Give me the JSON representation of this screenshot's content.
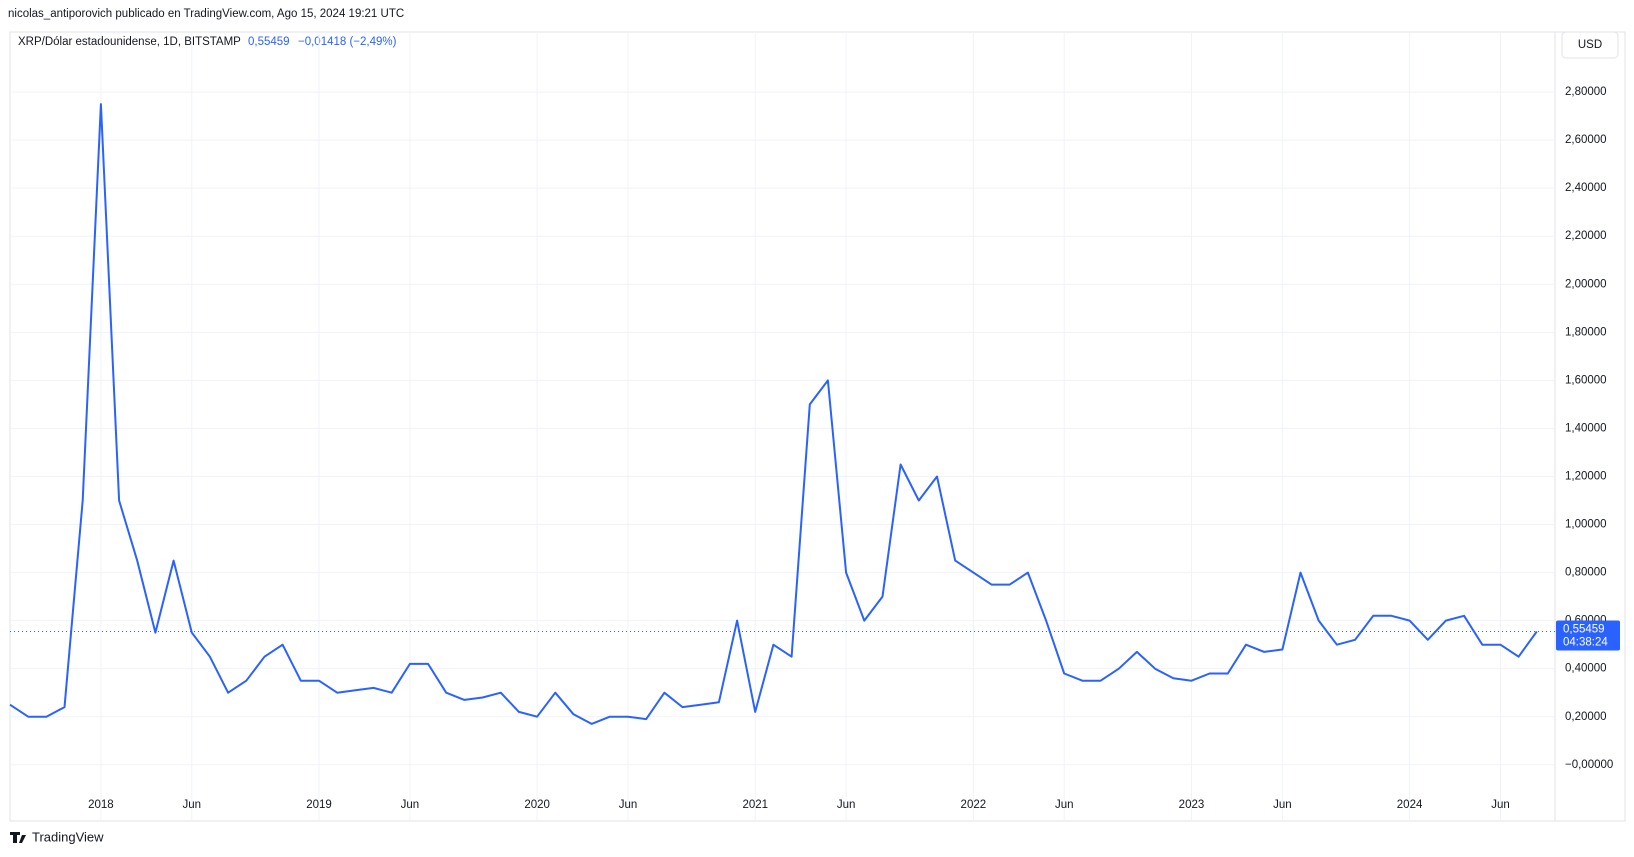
{
  "header": {
    "publisher": "nicolas_antiporovich publicado en TradingView.com, Ago 15, 2024 19:21 UTC",
    "logo": "TradingView"
  },
  "chart_data": {
    "type": "line",
    "title": "XRP/Dólar estadounidense, 1D, BITSTAMP",
    "currency": "USD",
    "last": {
      "value": 0.55459,
      "label": "0,55459"
    },
    "change": "−0,01418 (−2,49%)",
    "countdown": "04:38:24",
    "x": [
      "2017-08",
      "2017-09",
      "2017-10",
      "2017-11",
      "2017-12",
      "2018-01",
      "2018-02",
      "2018-03",
      "2018-04",
      "2018-05",
      "2018-06",
      "2018-07",
      "2018-08",
      "2018-09",
      "2018-10",
      "2018-11",
      "2018-12",
      "2019-01",
      "2019-02",
      "2019-03",
      "2019-04",
      "2019-05",
      "2019-06",
      "2019-07",
      "2019-08",
      "2019-09",
      "2019-10",
      "2019-11",
      "2019-12",
      "2020-01",
      "2020-02",
      "2020-03",
      "2020-04",
      "2020-05",
      "2020-06",
      "2020-07",
      "2020-08",
      "2020-09",
      "2020-10",
      "2020-11",
      "2020-12",
      "2021-01",
      "2021-02",
      "2021-03",
      "2021-04",
      "2021-05",
      "2021-06",
      "2021-07",
      "2021-08",
      "2021-09",
      "2021-10",
      "2021-11",
      "2021-12",
      "2022-01",
      "2022-02",
      "2022-03",
      "2022-04",
      "2022-05",
      "2022-06",
      "2022-07",
      "2022-08",
      "2022-09",
      "2022-10",
      "2022-11",
      "2022-12",
      "2023-01",
      "2023-02",
      "2023-03",
      "2023-04",
      "2023-05",
      "2023-06",
      "2023-07",
      "2023-08",
      "2023-09",
      "2023-10",
      "2023-11",
      "2023-12",
      "2024-01",
      "2024-02",
      "2024-03",
      "2024-04",
      "2024-05",
      "2024-06",
      "2024-07",
      "2024-08"
    ],
    "series": [
      {
        "name": "XRP/Dólar estadounidense",
        "color": "#2962ff",
        "values": [
          0.25,
          0.2,
          0.2,
          0.24,
          1.1,
          2.75,
          1.1,
          0.85,
          0.55,
          0.85,
          0.55,
          0.45,
          0.3,
          0.35,
          0.45,
          0.5,
          0.35,
          0.35,
          0.3,
          0.31,
          0.32,
          0.3,
          0.42,
          0.42,
          0.3,
          0.27,
          0.28,
          0.3,
          0.22,
          0.2,
          0.3,
          0.21,
          0.17,
          0.2,
          0.2,
          0.19,
          0.3,
          0.24,
          0.25,
          0.26,
          0.6,
          0.22,
          0.5,
          0.45,
          1.5,
          1.6,
          0.8,
          0.6,
          0.7,
          1.25,
          1.1,
          1.2,
          0.85,
          0.8,
          0.75,
          0.75,
          0.8,
          0.6,
          0.38,
          0.35,
          0.35,
          0.4,
          0.47,
          0.4,
          0.36,
          0.35,
          0.38,
          0.38,
          0.5,
          0.47,
          0.48,
          0.8,
          0.6,
          0.5,
          0.52,
          0.62,
          0.62,
          0.6,
          0.52,
          0.6,
          0.62,
          0.5,
          0.5,
          0.45,
          0.55459
        ]
      }
    ],
    "xlim": [
      "2017-08",
      "2024-09"
    ],
    "xticks": [
      {
        "value": "2018-01",
        "label": "2018"
      },
      {
        "value": "2018-06",
        "label": "Jun"
      },
      {
        "value": "2019-01",
        "label": "2019"
      },
      {
        "value": "2019-06",
        "label": "Jun"
      },
      {
        "value": "2020-01",
        "label": "2020"
      },
      {
        "value": "2020-06",
        "label": "Jun"
      },
      {
        "value": "2021-01",
        "label": "2021"
      },
      {
        "value": "2021-06",
        "label": "Jun"
      },
      {
        "value": "2022-01",
        "label": "2022"
      },
      {
        "value": "2022-06",
        "label": "Jun"
      },
      {
        "value": "2023-01",
        "label": "2023"
      },
      {
        "value": "2023-06",
        "label": "Jun"
      },
      {
        "value": "2024-01",
        "label": "2024"
      },
      {
        "value": "2024-06",
        "label": "Jun"
      }
    ],
    "ylim": [
      -0.234,
      3.05
    ],
    "yticks": [
      {
        "value": 0,
        "label": "−0,00000"
      },
      {
        "value": 0.2,
        "label": "0,20000"
      },
      {
        "value": 0.4,
        "label": "0,40000"
      },
      {
        "value": 0.6,
        "label": "0,60000"
      },
      {
        "value": 0.8,
        "label": "0,80000"
      },
      {
        "value": 1.0,
        "label": "1,00000"
      },
      {
        "value": 1.2,
        "label": "1,20000"
      },
      {
        "value": 1.4,
        "label": "1,40000"
      },
      {
        "value": 1.6,
        "label": "1,60000"
      },
      {
        "value": 1.8,
        "label": "1,80000"
      },
      {
        "value": 2.0,
        "label": "2,00000"
      },
      {
        "value": 2.2,
        "label": "2,20000"
      },
      {
        "value": 2.4,
        "label": "2,40000"
      },
      {
        "value": 2.6,
        "label": "2,60000"
      },
      {
        "value": 2.8,
        "label": "2,80000"
      }
    ],
    "grid": true
  }
}
